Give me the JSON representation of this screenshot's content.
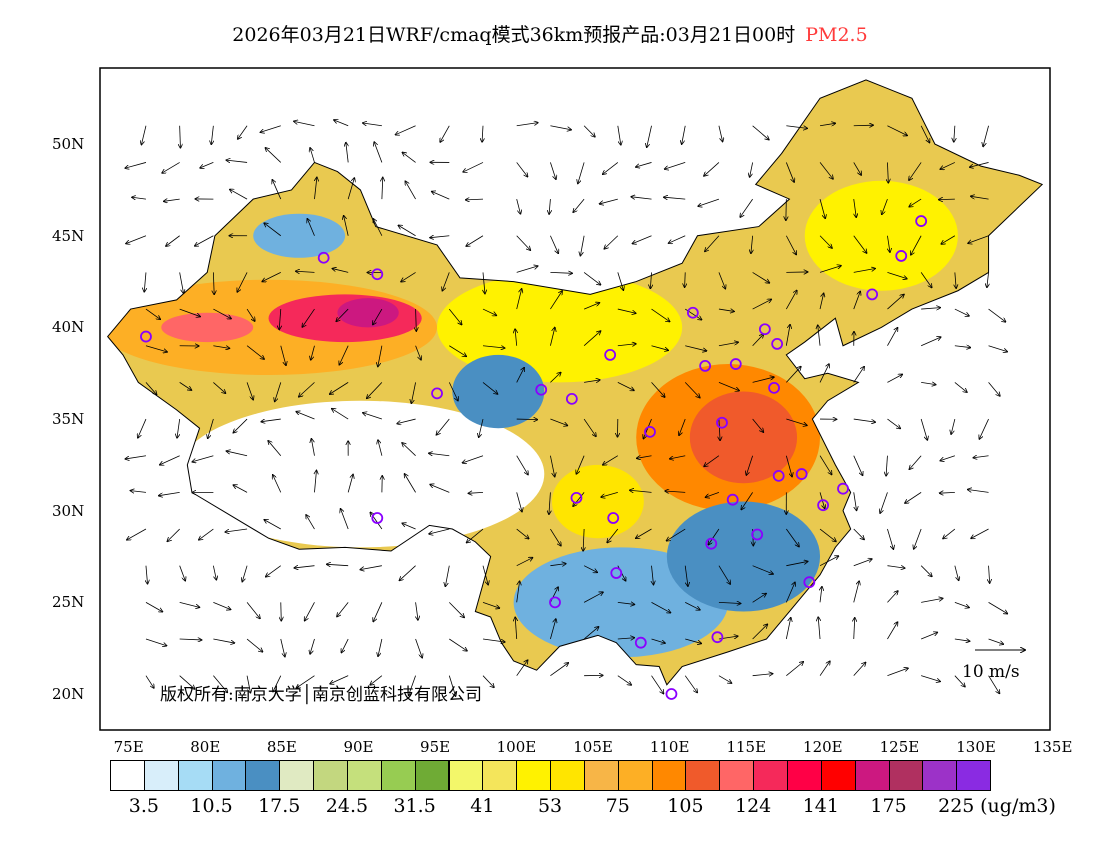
{
  "title": {
    "text": "2026年03月21日WRF/cmaq模式36km预报产品:03月21日00时",
    "variable": "PM2.5"
  },
  "copyright": "版权所有:南京大学│南京创蓝科技有限公司",
  "reference_vector": "10 m/s",
  "x_ticks": [
    "75E",
    "80E",
    "85E",
    "90E",
    "95E",
    "100E",
    "105E",
    "110E",
    "115E",
    "120E",
    "125E",
    "130E",
    "135E"
  ],
  "y_ticks": [
    "20N",
    "25N",
    "30N",
    "35N",
    "40N",
    "45N",
    "50N"
  ],
  "colorbar": {
    "unit": "(ug/m3)",
    "colors": [
      "#ffffff",
      "#d8eefa",
      "#a6dcf5",
      "#6fb1df",
      "#4a8fc2",
      "#e0eac2",
      "#c3d77f",
      "#c5e07c",
      "#97cc52",
      "#6fab35",
      "#f3f76a",
      "#f4e55b",
      "#fff200",
      "#ffe500",
      "#f7b547",
      "#fdaf25",
      "#ff8800",
      "#f05a2b",
      "#ff6666",
      "#f5295a",
      "#ff0046",
      "#ff0000",
      "#cc1880",
      "#b03060",
      "#9c32c8",
      "#8a2be2"
    ],
    "labels": [
      "3.5",
      "10.5",
      "17.5",
      "24.5",
      "31.5",
      "41",
      "53",
      "75",
      "105",
      "124",
      "141",
      "175",
      "225"
    ]
  },
  "map_data": {
    "lon_range": [
      73,
      135
    ],
    "lat_range": [
      18,
      54.1
    ],
    "stations": [
      [
        87.6,
        43.8
      ],
      [
        91.1,
        42.9
      ],
      [
        76,
        39.5
      ],
      [
        95,
        36.4
      ],
      [
        101.8,
        36.6
      ],
      [
        103.8,
        36.1
      ],
      [
        106.3,
        38.5
      ],
      [
        111.7,
        40.8
      ],
      [
        112.5,
        37.9
      ],
      [
        114.5,
        38
      ],
      [
        116.4,
        39.9
      ],
      [
        117.2,
        39.1
      ],
      [
        117,
        36.7
      ],
      [
        113.6,
        34.8
      ],
      [
        108.9,
        34.3
      ],
      [
        118.8,
        32
      ],
      [
        117.3,
        31.9
      ],
      [
        114.3,
        30.6
      ],
      [
        112.9,
        28.2
      ],
      [
        115.9,
        28.7
      ],
      [
        119.3,
        26.1
      ],
      [
        120.2,
        30.3
      ],
      [
        121.5,
        31.2
      ],
      [
        104.1,
        30.7
      ],
      [
        106.5,
        29.6
      ],
      [
        106.7,
        26.6
      ],
      [
        102.7,
        25
      ],
      [
        108.3,
        22.8
      ],
      [
        113.3,
        23.1
      ],
      [
        110.3,
        20
      ],
      [
        91.1,
        29.6
      ],
      [
        123.4,
        41.8
      ],
      [
        125.3,
        43.9
      ],
      [
        126.6,
        45.8
      ]
    ],
    "pm25_regions": [
      {
        "lon": 84,
        "lat": 40,
        "rx": 11,
        "ry": 2.6,
        "level": 15
      },
      {
        "lon": 89,
        "lat": 40.5,
        "rx": 5,
        "ry": 1.3,
        "level": 19
      },
      {
        "lon": 90.5,
        "lat": 40.8,
        "rx": 2,
        "ry": 0.8,
        "level": 22
      },
      {
        "lon": 80,
        "lat": 40,
        "rx": 3,
        "ry": 0.8,
        "level": 18
      },
      {
        "lon": 103,
        "lat": 40,
        "rx": 8,
        "ry": 3,
        "level": 12
      },
      {
        "lon": 114,
        "lat": 34,
        "rx": 6,
        "ry": 4,
        "level": 16
      },
      {
        "lon": 115,
        "lat": 34,
        "rx": 3.5,
        "ry": 2.5,
        "level": 17
      },
      {
        "lon": 124,
        "lat": 45,
        "rx": 5,
        "ry": 3,
        "level": 12
      },
      {
        "lon": 105.5,
        "lat": 30.5,
        "rx": 3,
        "ry": 2,
        "level": 13
      },
      {
        "lon": 90,
        "lat": 32,
        "rx": 12,
        "ry": 4,
        "level": 0
      },
      {
        "lon": 107,
        "lat": 25,
        "rx": 7,
        "ry": 3,
        "level": 3
      },
      {
        "lon": 99,
        "lat": 36.5,
        "rx": 3,
        "ry": 2,
        "level": 4
      },
      {
        "lon": 115,
        "lat": 27.5,
        "rx": 5,
        "ry": 3,
        "level": 4
      },
      {
        "lon": 86,
        "lat": 45,
        "rx": 3,
        "ry": 1.2,
        "level": 3
      }
    ]
  }
}
